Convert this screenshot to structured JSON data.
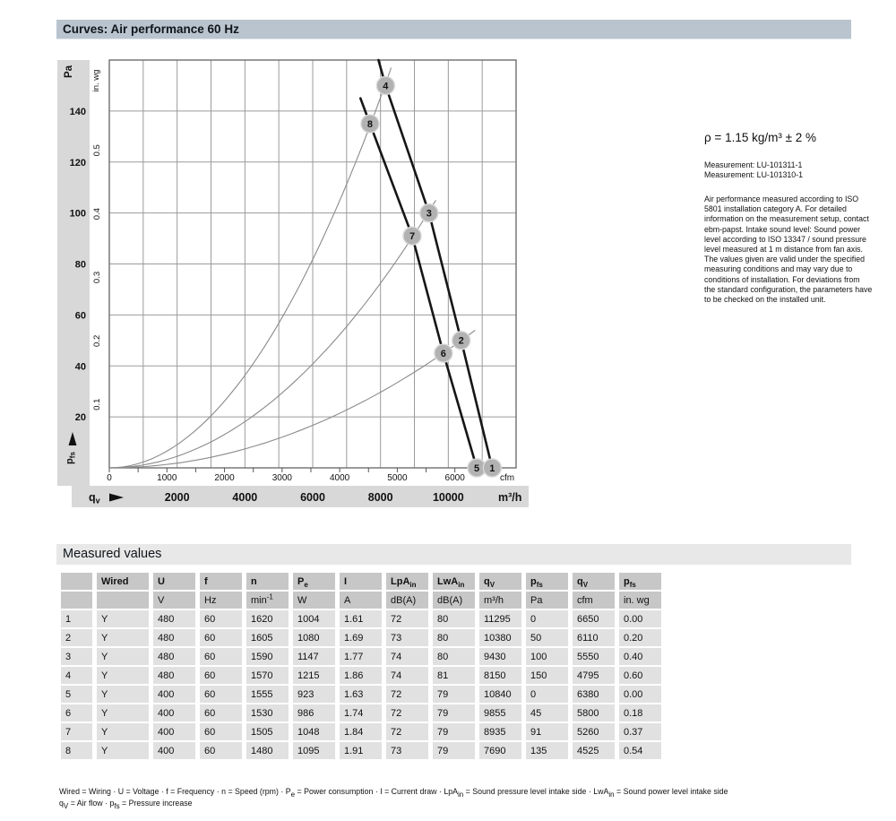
{
  "title_bar": {
    "title": "Curves: Air performance 60 Hz"
  },
  "colors": {
    "title_bar": "#b9c4cf",
    "axis_strip": "#d8d8d8",
    "plot_border": "#6e6e6e",
    "gridline": "#9b9b9b",
    "fan_curve": "#161616",
    "system_line": "#8a8a8a",
    "marker": "#b2b2b2",
    "table_header": "#c7c7c7",
    "table_cell": "#e1e1e1",
    "section_bar": "#e8e8e8"
  },
  "side_note": {
    "density": "ρ = 1.15 kg/m³ ± 2 %",
    "measurements": [
      "Measurement: LU-101311-1",
      "Measurement: LU-101310-1"
    ],
    "paragraph": "Air performance measured according to ISO 5801 installation category A. For detailed information on the measurement setup, contact ebm-papst. Intake sound level: Sound power level according to ISO 13347 / sound pressure level measured at 1 m distance from fan axis. The values given are valid under the specified measuring conditions and may vary due to conditions of installation. For deviations from the standard configuration, the parameters have to be checked on the installed unit."
  },
  "chart_data": {
    "type": "line",
    "title": "Curves: Air performance 60 Hz",
    "x_axis_m3h": {
      "unit": "m³/h",
      "name_base": "q",
      "name_sub": "v",
      "ticks": [
        2000,
        4000,
        6000,
        8000,
        10000
      ],
      "range": [
        0,
        12000
      ],
      "gridline_step": 1000
    },
    "x_axis_cfm": {
      "unit": "cfm",
      "ticks": [
        0,
        1000,
        2000,
        3000,
        4000,
        5000,
        6000
      ],
      "minor_tick_step": 500,
      "minor_tick_max": 6500,
      "m3h_per_cfm": 1.699
    },
    "y_axis_pa": {
      "unit": "Pa",
      "name_base": "p",
      "name_sub": "fs",
      "ticks": [
        20,
        40,
        60,
        80,
        100,
        120,
        140
      ],
      "range": [
        0,
        160
      ],
      "gridline_step": 20
    },
    "y_axis_inwg": {
      "unit": "in. wg",
      "ticks": [
        0.1,
        0.2,
        0.3,
        0.4,
        0.5
      ],
      "pa_per_inwg": 249.09
    },
    "fan_curves": [
      {
        "name": "480 V",
        "points_m3h_pa": [
          [
            7940,
            160
          ],
          [
            8150,
            150
          ],
          [
            9430,
            100
          ],
          [
            10380,
            50
          ],
          [
            11295,
            0
          ]
        ]
      },
      {
        "name": "400 V",
        "points_m3h_pa": [
          [
            7410,
            145
          ],
          [
            7690,
            135
          ],
          [
            8935,
            91
          ],
          [
            9855,
            45
          ],
          [
            10840,
            0
          ]
        ]
      }
    ],
    "system_curves": [
      {
        "through_markers": [
          8,
          4
        ],
        "k_pa_per_m3h2": 2.27e-06,
        "p_end_pa": 157
      },
      {
        "through_markers": [
          7,
          3
        ],
        "k_pa_per_m3h2": 1.132e-06,
        "p_end_pa": 105
      },
      {
        "through_markers": [
          6,
          2
        ],
        "k_pa_per_m3h2": 4.637e-07,
        "p_end_pa": 54
      }
    ],
    "markers": [
      {
        "label": "1",
        "q_m3h": 11295,
        "p_pa": 0
      },
      {
        "label": "2",
        "q_m3h": 10380,
        "p_pa": 50
      },
      {
        "label": "3",
        "q_m3h": 9430,
        "p_pa": 100
      },
      {
        "label": "4",
        "q_m3h": 8150,
        "p_pa": 150
      },
      {
        "label": "5",
        "q_m3h": 10840,
        "p_pa": 0
      },
      {
        "label": "6",
        "q_m3h": 9855,
        "p_pa": 45
      },
      {
        "label": "7",
        "q_m3h": 8935,
        "p_pa": 91
      },
      {
        "label": "8",
        "q_m3h": 7690,
        "p_pa": 135
      }
    ]
  },
  "measured_values": {
    "title": "Measured values",
    "columns": [
      "",
      "Wired",
      "U",
      "f",
      "n",
      "P_{e}",
      "I",
      "LpA_{in}",
      "LwA_{in}",
      "q_{V}",
      "p_{fs}",
      "q_{V}",
      "p_{fs}"
    ],
    "units": [
      "",
      "",
      "V",
      "Hz",
      "min^{-1}",
      "W",
      "A",
      "dB(A)",
      "dB(A)",
      "m³/h",
      "Pa",
      "cfm",
      "in. wg"
    ],
    "rows": [
      [
        "1",
        "Y",
        "480",
        "60",
        "1620",
        "1004",
        "1.61",
        "72",
        "80",
        "11295",
        "0",
        "6650",
        "0.00"
      ],
      [
        "2",
        "Y",
        "480",
        "60",
        "1605",
        "1080",
        "1.69",
        "73",
        "80",
        "10380",
        "50",
        "6110",
        "0.20"
      ],
      [
        "3",
        "Y",
        "480",
        "60",
        "1590",
        "1147",
        "1.77",
        "74",
        "80",
        "9430",
        "100",
        "5550",
        "0.40"
      ],
      [
        "4",
        "Y",
        "480",
        "60",
        "1570",
        "1215",
        "1.86",
        "74",
        "81",
        "8150",
        "150",
        "4795",
        "0.60"
      ],
      [
        "5",
        "Y",
        "400",
        "60",
        "1555",
        "923",
        "1.63",
        "72",
        "79",
        "10840",
        "0",
        "6380",
        "0.00"
      ],
      [
        "6",
        "Y",
        "400",
        "60",
        "1530",
        "986",
        "1.74",
        "72",
        "79",
        "9855",
        "45",
        "5800",
        "0.18"
      ],
      [
        "7",
        "Y",
        "400",
        "60",
        "1505",
        "1048",
        "1.84",
        "72",
        "79",
        "8935",
        "91",
        "5260",
        "0.37"
      ],
      [
        "8",
        "Y",
        "400",
        "60",
        "1480",
        "1095",
        "1.91",
        "73",
        "79",
        "7690",
        "135",
        "4525",
        "0.54"
      ]
    ],
    "footnotes": [
      "Wired = Wiring · U = Voltage · f = Frequency · n = Speed (rpm) · P_{e} = Power consumption · I = Current draw · LpA_{in} = Sound pressure level intake side · LwA_{in} = Sound power level intake side",
      "q_{V} = Air flow · p_{fs} = Pressure increase"
    ]
  }
}
